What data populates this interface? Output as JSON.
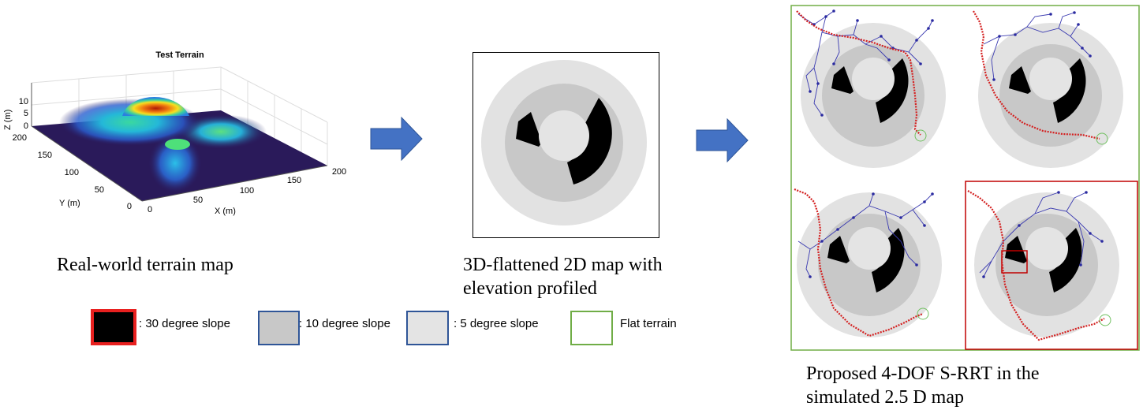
{
  "terrain_plot": {
    "title": "Test Terrain",
    "z_label": "Z (m)",
    "y_label": "Y (m)",
    "x_label": "X (m)",
    "z_ticks": [
      "10",
      "5",
      "0"
    ],
    "y_ticks": [
      "200",
      "150",
      "100",
      "50",
      "0"
    ],
    "x_ticks": [
      "0",
      "50",
      "100",
      "150",
      "200"
    ]
  },
  "captions": {
    "terrain": "Real-world terrain map",
    "flat_map_line1": "3D-flattened 2D map with",
    "flat_map_line2": "elevation profiled",
    "rrt_line1": "Proposed 4-DOF S-RRT in the",
    "rrt_line2": "simulated 2.5 D map"
  },
  "legend": [
    {
      "label": ": 30 degree slope",
      "fill": "#000000",
      "border": "#e8201f"
    },
    {
      "label": ": 10 degree slope",
      "fill": "#c8c8c8",
      "border": "#2f5597"
    },
    {
      "label": ": 5 degree slope",
      "fill": "#e4e4e4",
      "border": "#2f5597"
    },
    {
      "label": "Flat terrain",
      "fill": "#ffffff",
      "border": "#70ad47"
    }
  ],
  "colors": {
    "arrow": "#4472c4",
    "outer_ring": "#e2e2e2",
    "middle_ring": "#c8c8c8",
    "inner_disk": "#e4e4e4",
    "obstacle": "#000000",
    "path": "#d42020",
    "tree": "#2b2ba0",
    "goal": "#70c060",
    "panel_border_green": "#70ad47",
    "panel_border_red": "#c00000"
  },
  "icons": {
    "arrow_1": "right-arrow-icon",
    "arrow_2": "right-arrow-icon"
  }
}
